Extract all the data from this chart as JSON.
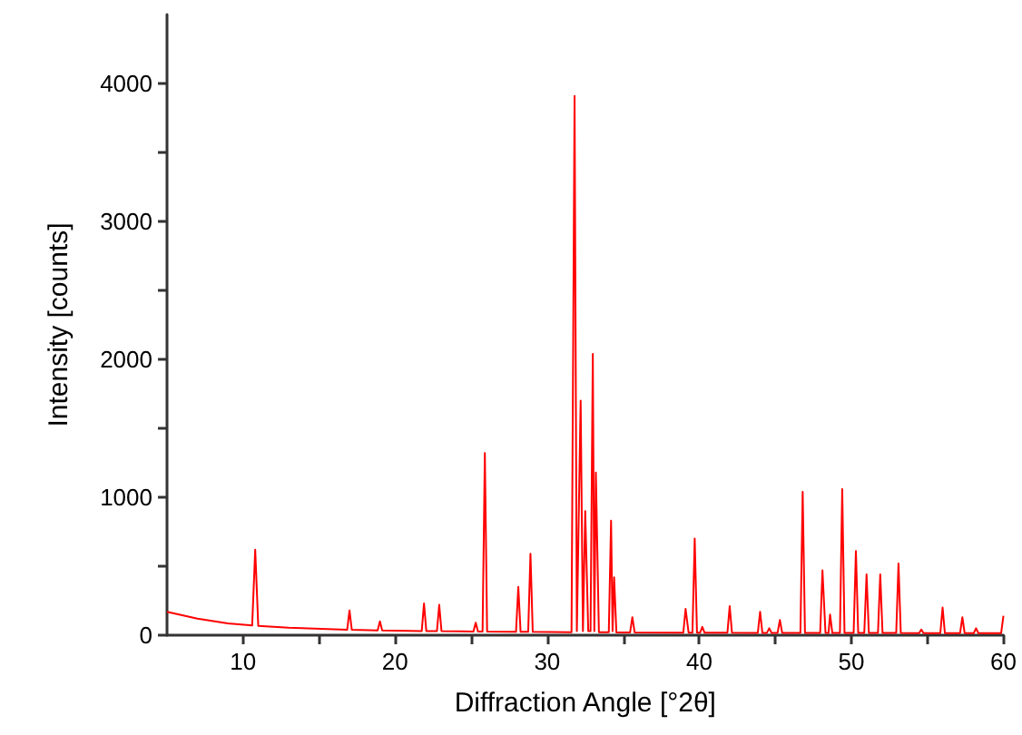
{
  "chart_data": {
    "type": "line",
    "xlabel": "Diffraction Angle [°2θ]",
    "ylabel": "Intensity [counts]",
    "xlim": [
      5,
      60
    ],
    "ylim": [
      0,
      4500
    ],
    "xticks": [
      10,
      {
        "value": 15,
        "label": null
      },
      20,
      {
        "value": 25,
        "label": null
      },
      30,
      {
        "value": 35,
        "label": null
      },
      40,
      {
        "value": 45,
        "label": null
      },
      50,
      {
        "value": 55,
        "label": null
      },
      60
    ],
    "yticks": [
      0,
      {
        "value": 500,
        "label": null
      },
      1000,
      {
        "value": 1500,
        "label": null
      },
      2000,
      {
        "value": 2500,
        "label": null
      },
      3000,
      {
        "value": 3500,
        "label": null
      },
      4000
    ],
    "grid": false,
    "marker": "none",
    "line_style": "solid",
    "series": [
      {
        "color": "#ff0000",
        "x": [
          5,
          7,
          9,
          10.6,
          10.8,
          11.0,
          13,
          16.85,
          17.0,
          17.15,
          18.85,
          19.0,
          19.15,
          21.75,
          21.9,
          22.05,
          22.75,
          22.9,
          23.05,
          25.15,
          25.3,
          25.45,
          25.75,
          25.9,
          26.05,
          27.95,
          28.1,
          28.25,
          28.75,
          28.9,
          29.05,
          31.6,
          31.8,
          31.95,
          32.2,
          32.35,
          32.5,
          32.7,
          32.85,
          33.0,
          33.1,
          33.2,
          33.4,
          34.05,
          34.2,
          34.3,
          34.4,
          34.55,
          35.45,
          35.6,
          35.75,
          38.95,
          39.1,
          39.3,
          39.55,
          39.7,
          39.85,
          40.05,
          40.2,
          40.35,
          41.85,
          42.0,
          42.15,
          43.85,
          44.0,
          44.15,
          44.45,
          44.6,
          44.75,
          45.15,
          45.3,
          45.45,
          46.65,
          46.8,
          46.95,
          47.95,
          48.1,
          48.3,
          48.5,
          48.6,
          48.75,
          49.25,
          49.4,
          49.55,
          50.15,
          50.3,
          50.45,
          50.85,
          51.0,
          51.15,
          51.75,
          51.9,
          52.05,
          52.95,
          53.1,
          53.25,
          54.45,
          54.6,
          54.75,
          55.85,
          56.0,
          56.15,
          57.15,
          57.3,
          57.45,
          58.05,
          58.2,
          58.35,
          59.85,
          60
        ],
        "values": [
          170,
          120,
          85,
          70,
          620,
          68,
          55,
          40,
          180,
          40,
          35,
          100,
          35,
          30,
          230,
          30,
          30,
          220,
          30,
          26,
          90,
          26,
          26,
          1320,
          26,
          24,
          350,
          24,
          24,
          590,
          24,
          22,
          3910,
          30,
          1700,
          30,
          900,
          30,
          30,
          2040,
          30,
          1180,
          22,
          22,
          830,
          30,
          420,
          20,
          20,
          130,
          20,
          18,
          190,
          18,
          18,
          700,
          18,
          18,
          60,
          18,
          18,
          210,
          18,
          17,
          170,
          17,
          17,
          50,
          17,
          17,
          110,
          17,
          16,
          1040,
          16,
          16,
          470,
          16,
          16,
          150,
          16,
          16,
          1060,
          16,
          16,
          610,
          16,
          16,
          440,
          16,
          16,
          440,
          16,
          16,
          520,
          16,
          15,
          40,
          15,
          15,
          200,
          15,
          15,
          130,
          15,
          15,
          50,
          15,
          15,
          140
        ]
      }
    ]
  }
}
